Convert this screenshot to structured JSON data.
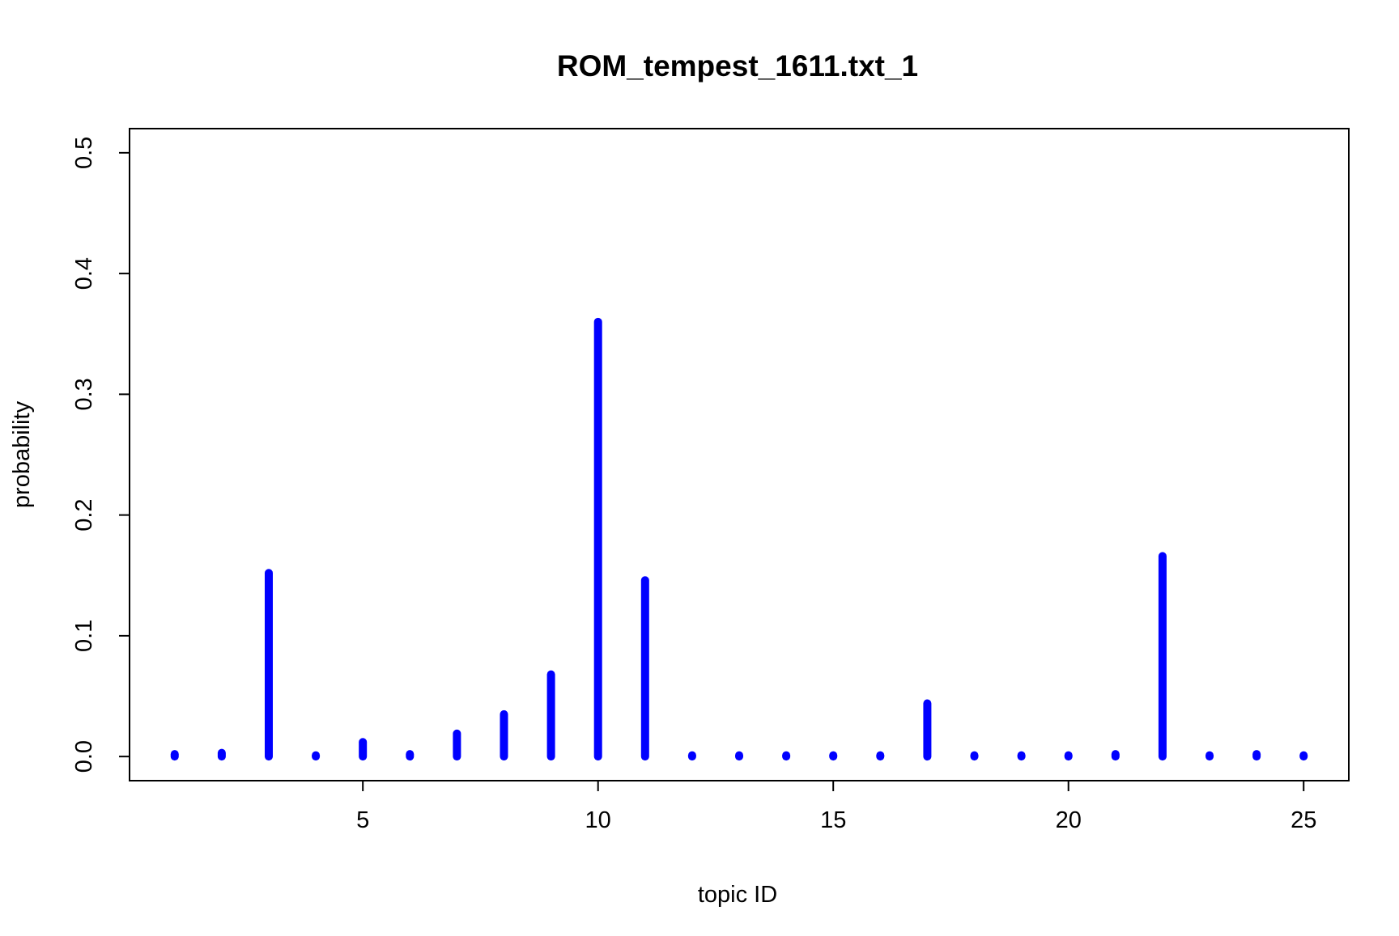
{
  "chart_data": {
    "type": "bar",
    "title": "ROM_tempest_1611.txt_1",
    "xlabel": "topic ID",
    "ylabel": "probability",
    "x": [
      1,
      2,
      3,
      4,
      5,
      6,
      7,
      8,
      9,
      10,
      11,
      12,
      13,
      14,
      15,
      16,
      17,
      18,
      19,
      20,
      21,
      22,
      23,
      24,
      25
    ],
    "values": [
      0.002,
      0.003,
      0.152,
      0.001,
      0.012,
      0.002,
      0.019,
      0.035,
      0.068,
      0.36,
      0.146,
      0.001,
      0.001,
      0.001,
      0.001,
      0.001,
      0.044,
      0.001,
      0.001,
      0.001,
      0.002,
      0.166,
      0.001,
      0.002,
      0.001
    ],
    "xlim": [
      0.04,
      25.96
    ],
    "ylim": [
      -0.02,
      0.52
    ],
    "xticks": [
      5,
      10,
      15,
      20,
      25
    ],
    "yticks": [
      0.0,
      0.1,
      0.2,
      0.3,
      0.4,
      0.5
    ],
    "xtick_labels": [
      "5",
      "10",
      "15",
      "20",
      "25"
    ],
    "ytick_labels": [
      "0.0",
      "0.1",
      "0.2",
      "0.3",
      "0.4",
      "0.5"
    ],
    "grid": false,
    "legend": "none",
    "color": "#0000ff"
  }
}
